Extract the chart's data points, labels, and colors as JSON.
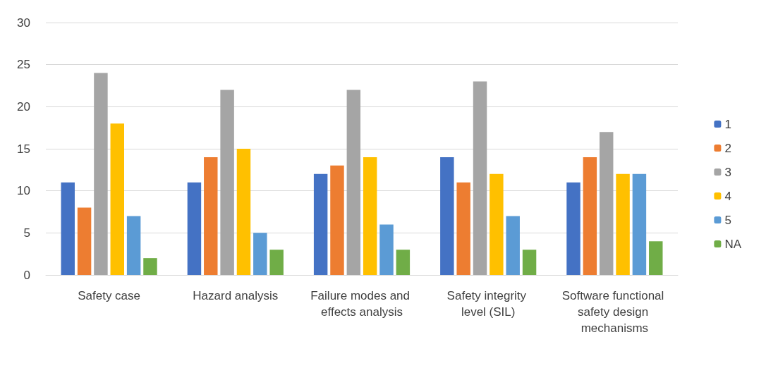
{
  "chart_data": {
    "type": "bar",
    "categories": [
      "Safety case",
      "Hazard analysis",
      "Failure modes and effects analysis",
      "Safety integrity level (SIL)",
      "Software functional safety design mechanisms"
    ],
    "series": [
      {
        "name": "1",
        "color": "#4472c4",
        "values": [
          11,
          11,
          12,
          14,
          11
        ]
      },
      {
        "name": "2",
        "color": "#ed7d31",
        "values": [
          8,
          14,
          13,
          11,
          14
        ]
      },
      {
        "name": "3",
        "color": "#a5a5a5",
        "values": [
          24,
          22,
          22,
          23,
          17
        ]
      },
      {
        "name": "4",
        "color": "#ffc000",
        "values": [
          18,
          15,
          14,
          12,
          12
        ]
      },
      {
        "name": "5",
        "color": "#5b9bd5",
        "values": [
          7,
          5,
          6,
          7,
          12
        ]
      },
      {
        "name": "NA",
        "color": "#70ad47",
        "values": [
          2,
          3,
          3,
          3,
          4
        ]
      }
    ],
    "ylim": [
      0,
      30
    ],
    "yticks": [
      0,
      5,
      10,
      15,
      20,
      25,
      30
    ],
    "grid": "y",
    "legend": "right"
  }
}
